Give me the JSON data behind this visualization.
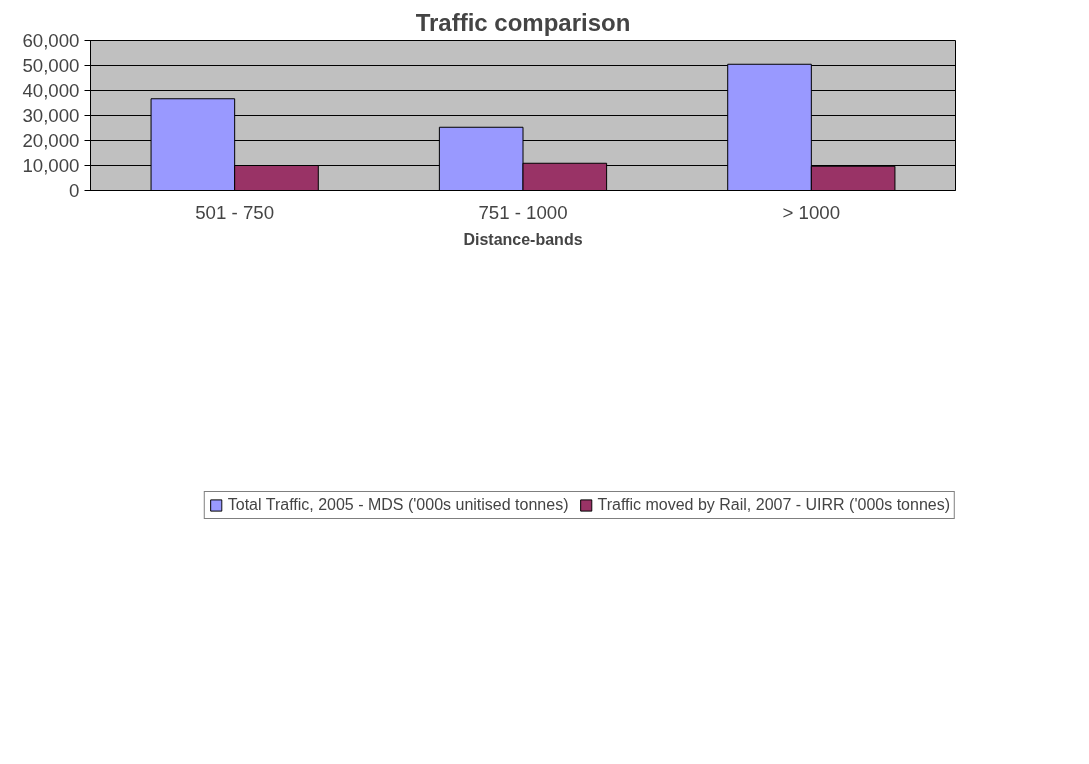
{
  "chart_data": {
    "type": "bar",
    "title": "Traffic comparison",
    "xlabel": "Distance-bands",
    "categories": [
      "501 - 750",
      "751 - 1000",
      "> 1000"
    ],
    "series": [
      {
        "name": "Total Traffic, 2005 - MDS ('000s unitised tonnes)",
        "color": "#9999ff",
        "values": [
          36700,
          25300,
          50500
        ]
      },
      {
        "name": "Traffic moved by Rail, 2007 - UIRR ('000s tonnes)",
        "color": "#993366",
        "values": [
          10000,
          10900,
          9700
        ]
      }
    ],
    "ylim": [
      0,
      60000
    ],
    "yticks": [
      {
        "value": 0,
        "label": "0"
      },
      {
        "value": 10000,
        "label": "10,000"
      },
      {
        "value": 20000,
        "label": "20,000"
      },
      {
        "value": 30000,
        "label": "30,000"
      },
      {
        "value": 40000,
        "label": "40,000"
      },
      {
        "value": 50000,
        "label": "50,000"
      },
      {
        "value": 60000,
        "label": "60,000"
      }
    ],
    "grid": "y",
    "legend": "bottom"
  }
}
